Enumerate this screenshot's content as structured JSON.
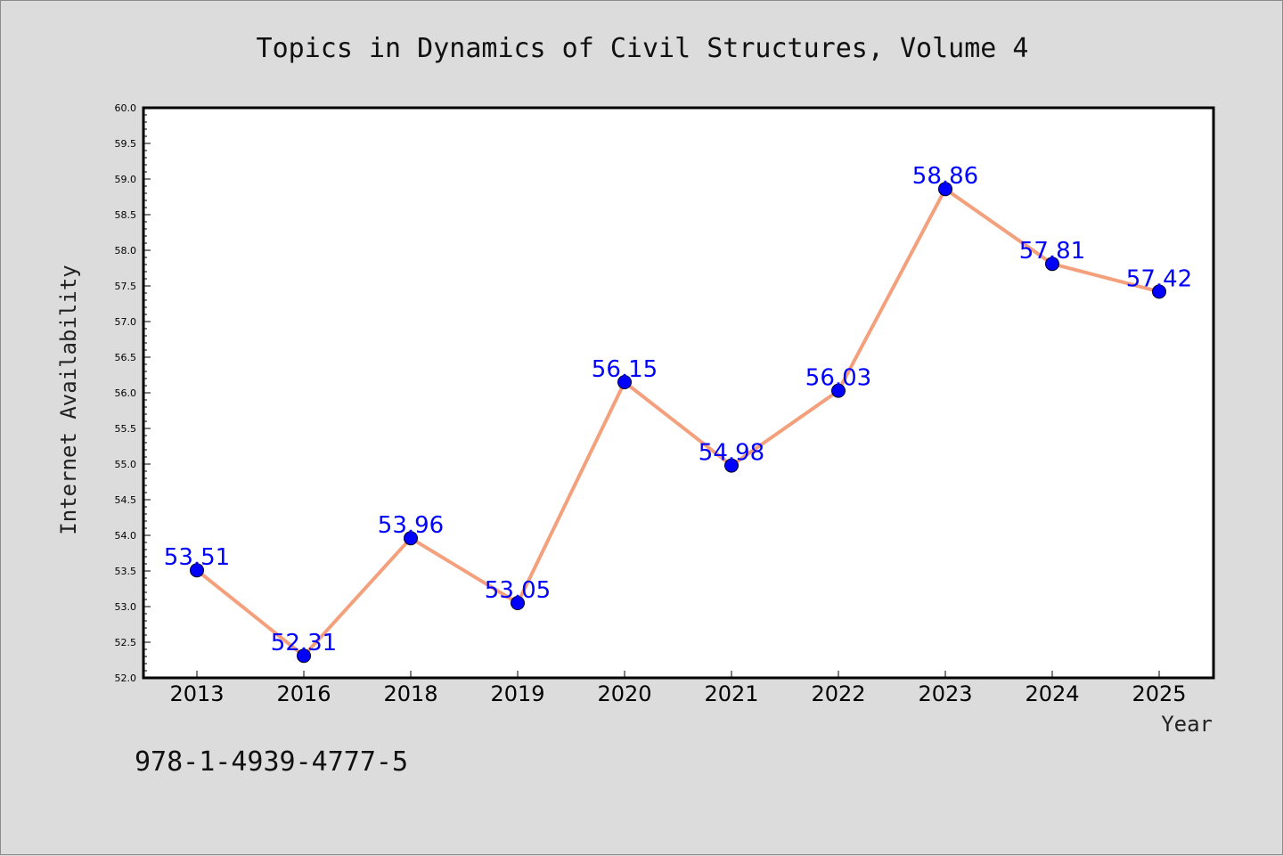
{
  "chart_data": {
    "type": "line",
    "title": "Topics in Dynamics of Civil Structures, Volume 4",
    "xlabel": "Year",
    "ylabel": "Internet Availability",
    "categories": [
      "2013",
      "2016",
      "2018",
      "2019",
      "2020",
      "2021",
      "2022",
      "2023",
      "2024",
      "2025"
    ],
    "values": [
      53.51,
      52.31,
      53.96,
      53.05,
      56.15,
      54.98,
      56.03,
      58.86,
      57.81,
      57.42
    ],
    "value_labels": [
      "53.51",
      "52.31",
      "53.96",
      "53.05",
      "56.15",
      "54.98",
      "56.03",
      "58.86",
      "57.81",
      "57.42"
    ],
    "ylim": [
      52.0,
      60.0
    ],
    "yticks": [
      "52.0",
      "52.5",
      "53.0",
      "53.5",
      "54.0",
      "54.5",
      "55.0",
      "55.5",
      "56.0",
      "56.5",
      "57.0",
      "57.5",
      "58.0",
      "58.5",
      "59.0",
      "59.5",
      "60.0"
    ],
    "grid": false,
    "line_color": "#f4a07c",
    "marker_color": "#0000ff",
    "label_color": "#0000ff",
    "background_color": "#dcdcdc",
    "plot_background_color": "#ffffff"
  },
  "footer": {
    "isbn": "978-1-4939-4777-5"
  }
}
